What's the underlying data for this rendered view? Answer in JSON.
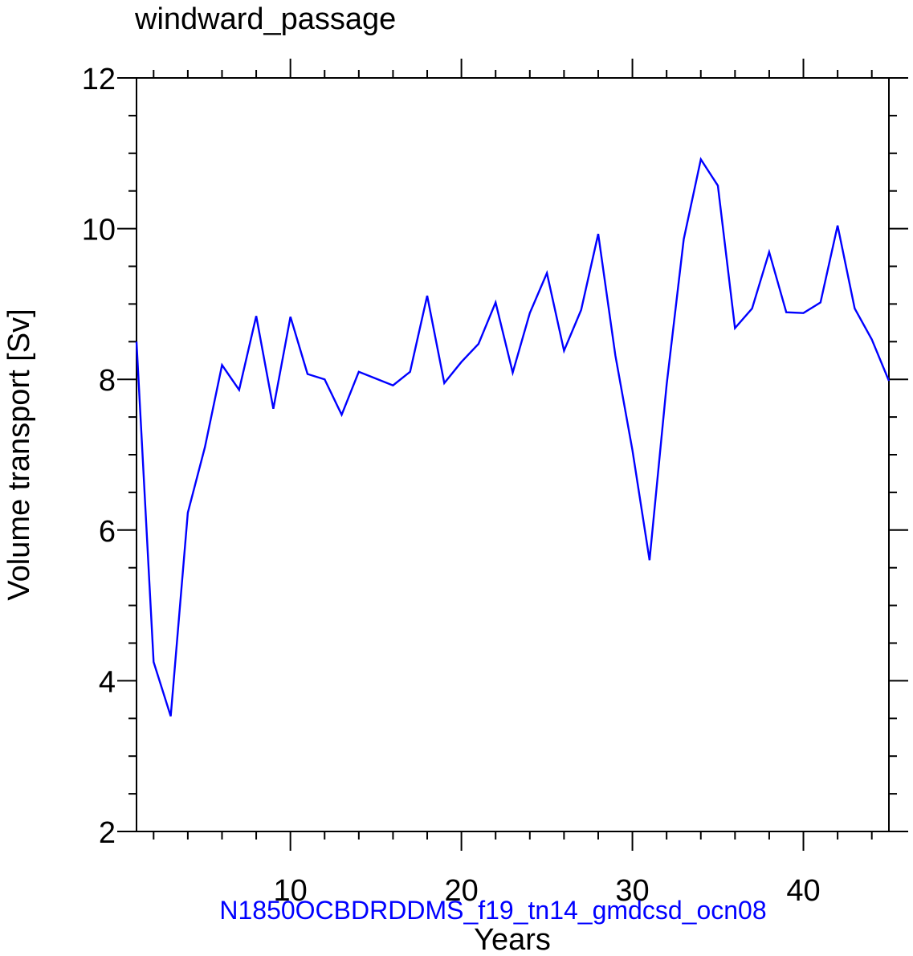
{
  "chart_data": {
    "type": "line",
    "title": "windward_passage",
    "xlabel": "Years",
    "ylabel": "Volume transport [Sv]",
    "subtitle": "N1850OCBDRDDMS_f19_tn14_gmdcsd_ocn08",
    "xlim": [
      1,
      45
    ],
    "ylim": [
      2,
      12
    ],
    "x_ticks": [
      10,
      20,
      30,
      40
    ],
    "y_ticks": [
      2,
      4,
      6,
      8,
      10,
      12
    ],
    "grid": false,
    "series": [
      {
        "color": "#0000ff",
        "x": [
          1,
          2,
          3,
          4,
          5,
          6,
          7,
          8,
          9,
          10,
          11,
          12,
          13,
          14,
          15,
          16,
          17,
          18,
          19,
          20,
          21,
          22,
          23,
          24,
          25,
          26,
          27,
          28,
          29,
          30,
          31,
          32,
          33,
          34,
          35,
          36,
          37,
          38,
          39,
          40,
          41,
          42,
          43,
          44,
          45
        ],
        "values": [
          8.5,
          4.25,
          3.53,
          6.23,
          7.1,
          8.19,
          7.86,
          8.84,
          7.61,
          8.83,
          8.07,
          8.0,
          7.53,
          8.1,
          8.01,
          7.92,
          8.1,
          9.11,
          7.95,
          8.23,
          8.47,
          9.02,
          8.09,
          8.88,
          9.41,
          8.38,
          8.92,
          9.93,
          8.32,
          7.06,
          5.6,
          7.93,
          9.86,
          10.92,
          10.57,
          8.68,
          8.94,
          9.69,
          8.89,
          8.88,
          9.02,
          10.04,
          8.94,
          8.53,
          7.98
        ]
      }
    ]
  },
  "colors": {
    "axes": "#000000",
    "line": "#0000ff",
    "subtitle": "#0000ff",
    "background": "#ffffff"
  }
}
